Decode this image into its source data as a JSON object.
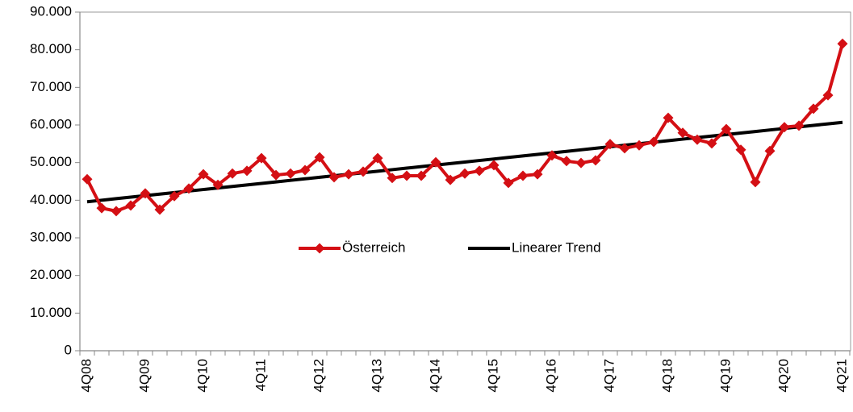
{
  "chart_data": {
    "type": "line",
    "categories": [
      "4Q08",
      null,
      null,
      null,
      "4Q09",
      null,
      null,
      null,
      "4Q10",
      null,
      null,
      null,
      "4Q11",
      null,
      null,
      null,
      "4Q12",
      null,
      null,
      null,
      "4Q13",
      null,
      null,
      null,
      "4Q14",
      null,
      null,
      null,
      "4Q15",
      null,
      null,
      null,
      "4Q16",
      null,
      null,
      null,
      "4Q17",
      null,
      null,
      null,
      "4Q18",
      null,
      null,
      null,
      "4Q19",
      null,
      null,
      null,
      "4Q20",
      null,
      null,
      null,
      "4Q21"
    ],
    "series": [
      {
        "name": "Österreich",
        "color": "#d40f14",
        "marker": "diamond",
        "values": [
          45600,
          37900,
          37100,
          38600,
          41800,
          37500,
          41100,
          43100,
          46900,
          44100,
          47100,
          47800,
          51200,
          46700,
          47100,
          48000,
          51400,
          46100,
          46900,
          47600,
          51200,
          45900,
          46500,
          46500,
          50100,
          45400,
          47100,
          47800,
          49300,
          44600,
          46500,
          46900,
          51900,
          50400,
          49900,
          50600,
          54900,
          53800,
          54600,
          55500,
          61900,
          57900,
          56100,
          55100,
          58900,
          53400,
          44800,
          53100,
          59400,
          59800,
          64300,
          67900,
          81600
        ]
      },
      {
        "name": "Linearer Trend",
        "color": "#000000",
        "values": [
          39600,
          40006,
          40412,
          40817,
          41223,
          41629,
          42035,
          42441,
          42846,
          43252,
          43658,
          44064,
          44470,
          44875,
          45281,
          45687,
          46093,
          46499,
          46904,
          47310,
          47716,
          48122,
          48528,
          48933,
          49339,
          49745,
          50151,
          50557,
          50962,
          51368,
          51774,
          52180,
          52586,
          52991,
          53397,
          53803,
          54209,
          54615,
          55020,
          55426,
          55832,
          56238,
          56644,
          57049,
          57455,
          57861,
          58267,
          58673,
          59078,
          59484,
          59890,
          60296,
          60702
        ]
      }
    ],
    "ylim": [
      0,
      90000
    ],
    "yticks": [
      0,
      {
        "value": 10000,
        "label": "10.000"
      },
      {
        "value": 20000,
        "label": "20.000"
      },
      {
        "value": 30000,
        "label": "30.000"
      },
      {
        "value": 40000,
        "label": "40.000"
      },
      {
        "value": 50000,
        "label": "50.000"
      },
      {
        "value": 60000,
        "label": "60.000"
      },
      {
        "value": 70000,
        "label": "70.000"
      },
      {
        "value": 80000,
        "label": "80.000"
      },
      {
        "value": 90000,
        "label": "90.000"
      }
    ],
    "grid": false,
    "legend": "center"
  }
}
